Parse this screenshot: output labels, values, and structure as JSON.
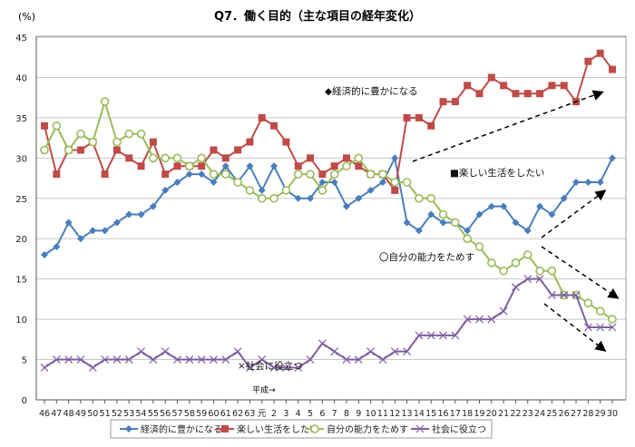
{
  "chart_data": {
    "type": "line",
    "title": "Q7．働く目的（主な項目の経年変化）",
    "ylabel": "(%)",
    "xlabel": "",
    "ylim": [
      0,
      45
    ],
    "yticks": [
      0,
      5,
      10,
      15,
      20,
      25,
      30,
      35,
      40,
      45
    ],
    "grid": true,
    "legend_position": "bottom",
    "era_note": "平成→",
    "categories": [
      "46",
      "47",
      "48",
      "49",
      "50",
      "51",
      "52",
      "53",
      "54",
      "55",
      "56",
      "57",
      "58",
      "59",
      "60",
      "61",
      "62",
      "63",
      "元",
      "2",
      "3",
      "4",
      "5",
      "6",
      "7",
      "8",
      "9",
      "10",
      "11",
      "12",
      "13",
      "14",
      "15",
      "16",
      "17",
      "18",
      "19",
      "20",
      "21",
      "22",
      "23",
      "24",
      "25",
      "26",
      "27",
      "28",
      "29",
      "30"
    ],
    "series": [
      {
        "name": "経済的に豊かになる",
        "annotation": "◆経済的に豊かになる",
        "color": "#4a7ebb",
        "marker": "diamond",
        "values": [
          18,
          19,
          22,
          20,
          21,
          21,
          22,
          23,
          23,
          24,
          26,
          27,
          28,
          28,
          27,
          29,
          27,
          29,
          26,
          29,
          26,
          25,
          25,
          27,
          27,
          24,
          25,
          26,
          27,
          30,
          22,
          21,
          23,
          22,
          22,
          21,
          23,
          24,
          24,
          22,
          21,
          24,
          23,
          25,
          27,
          27,
          27,
          30
        ]
      },
      {
        "name": "楽しい生活をしたい",
        "annotation": "■楽しい生活をしたい",
        "color": "#be4b48",
        "marker": "square",
        "values": [
          34,
          28,
          31,
          31,
          32,
          28,
          31,
          30,
          29,
          32,
          28,
          29,
          29,
          29,
          31,
          30,
          31,
          32,
          35,
          34,
          32,
          29,
          30,
          28,
          29,
          30,
          29,
          28,
          28,
          26,
          35,
          35,
          34,
          37,
          37,
          39,
          38,
          40,
          39,
          38,
          38,
          38,
          39,
          39,
          37,
          42,
          43,
          41
        ]
      },
      {
        "name": "自分の能力をためす",
        "annotation": "〇自分の能力をためす",
        "color": "#9bbb59",
        "marker": "circle",
        "values": [
          31,
          34,
          31,
          33,
          32,
          37,
          32,
          33,
          33,
          30,
          30,
          30,
          29,
          30,
          28,
          28,
          27,
          26,
          25,
          25,
          26,
          28,
          28,
          26,
          28,
          29,
          30,
          28,
          28,
          27,
          27,
          25,
          25,
          23,
          22,
          20,
          19,
          17,
          16,
          17,
          18,
          16,
          16,
          13,
          13,
          12,
          11,
          10
        ]
      },
      {
        "name": "社会に役立つ",
        "annotation": "×社会に役立つ",
        "color": "#7d5fa0",
        "marker": "x",
        "values": [
          4,
          5,
          5,
          5,
          4,
          5,
          5,
          5,
          6,
          5,
          6,
          5,
          5,
          5,
          5,
          5,
          6,
          4,
          5,
          4,
          4,
          4,
          5,
          7,
          6,
          5,
          5,
          6,
          5,
          6,
          6,
          8,
          8,
          8,
          8,
          10,
          10,
          10,
          11,
          14,
          15,
          15,
          13,
          13,
          13,
          9,
          9,
          9
        ]
      }
    ]
  }
}
